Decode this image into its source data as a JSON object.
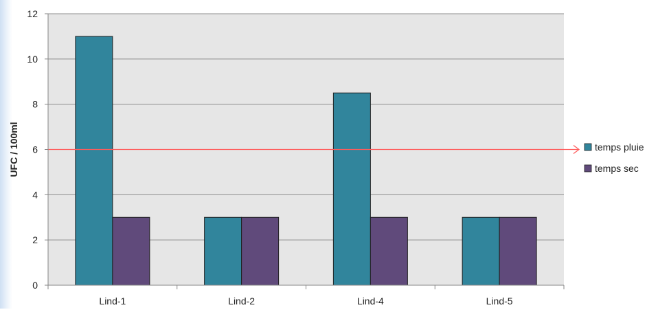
{
  "chart_data": {
    "type": "bar",
    "title": "",
    "xlabel": "",
    "ylabel": "UFC / 100ml",
    "ylim": [
      0,
      12
    ],
    "yticks": [
      0,
      2,
      4,
      6,
      8,
      10,
      12
    ],
    "categories": [
      "Lind-1",
      "Lind-2",
      "Lind-4",
      "Lind-5"
    ],
    "series": [
      {
        "name": "temps pluie",
        "color": "#31859c",
        "values": [
          11,
          3,
          8.5,
          3
        ]
      },
      {
        "name": "temps sec",
        "color": "#604a7b",
        "values": [
          3,
          3,
          3,
          3
        ]
      }
    ],
    "threshold": {
      "value": 6,
      "color": "#ff5b5b"
    },
    "plot_background": "#e6e6e6",
    "grid": true,
    "legend_position": "right"
  }
}
